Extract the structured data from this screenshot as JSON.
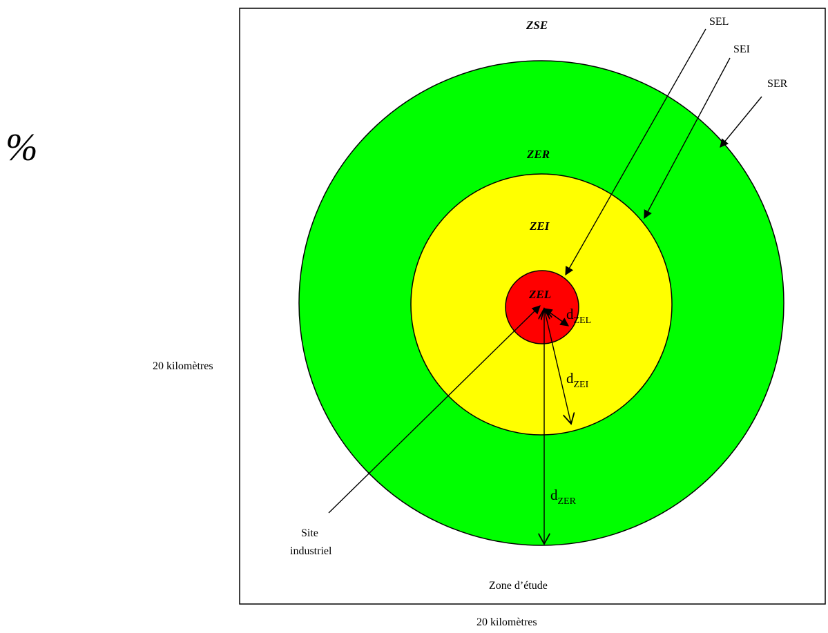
{
  "symbol": "%",
  "zones": {
    "zse": "ZSE",
    "zer": "ZER",
    "zei": "ZEI",
    "zel": "ZEL"
  },
  "thresholds": {
    "sel": "SEL",
    "sei": "SEI",
    "ser": "SER"
  },
  "distances": {
    "d": "d",
    "zel_sub": "ZEL",
    "zei_sub": "ZEI",
    "zer_sub": "ZER"
  },
  "labels": {
    "site_line1": "Site",
    "site_line2": "industriel",
    "study_zone": "Zone d’étude",
    "height_dim": "20 kilomètres",
    "width_dim": "20 kilomètres"
  },
  "colors": {
    "zer_fill": "#00ff00",
    "zei_fill": "#ffff00",
    "zel_fill": "#ff0000",
    "stroke": "#000000"
  }
}
